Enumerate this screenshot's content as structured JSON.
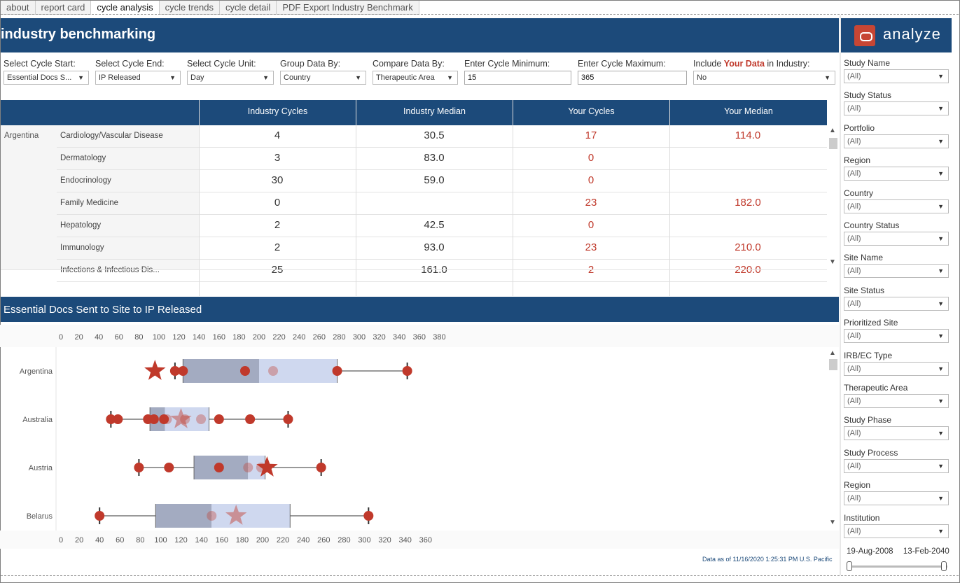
{
  "tabs": [
    "about",
    "report card",
    "cycle analysis",
    "cycle trends",
    "cycle detail",
    "PDF Export Industry Benchmark"
  ],
  "active_tab": 2,
  "header": {
    "title": "industry benchmarking",
    "logo_text": "analyze"
  },
  "filters": {
    "cycle_start": {
      "label": "Select Cycle Start:",
      "value": "Essential Docs S..."
    },
    "cycle_end": {
      "label": "Select Cycle End:",
      "value": "IP Released"
    },
    "cycle_unit": {
      "label": "Select Cycle Unit:",
      "value": "Day"
    },
    "group_by": {
      "label": "Group Data By:",
      "value": "Country"
    },
    "compare_by": {
      "label": "Compare Data By:",
      "value": "Therapeutic Area"
    },
    "cycle_min": {
      "label": "Enter Cycle Minimum:",
      "value": "15"
    },
    "cycle_max": {
      "label": "Enter Cycle Maximum:",
      "value": "365"
    },
    "include": {
      "label_pre": "Include ",
      "label_hl": "Your Data",
      "label_post": " in Industry:",
      "value": "No"
    }
  },
  "table": {
    "headers": [
      "Industry Cycles",
      "Industry Median",
      "Your Cycles",
      "Your Median"
    ],
    "country": "Argentina",
    "rows": [
      {
        "category": "Cardiology/Vascular Disease",
        "industry_cycles": "4",
        "industry_median": "30.5",
        "your_cycles": "17",
        "your_median": "114.0"
      },
      {
        "category": "Dermatology",
        "industry_cycles": "3",
        "industry_median": "83.0",
        "your_cycles": "0",
        "your_median": ""
      },
      {
        "category": "Endocrinology",
        "industry_cycles": "30",
        "industry_median": "59.0",
        "your_cycles": "0",
        "your_median": ""
      },
      {
        "category": "Family Medicine",
        "industry_cycles": "0",
        "industry_median": "",
        "your_cycles": "23",
        "your_median": "182.0"
      },
      {
        "category": "Hepatology",
        "industry_cycles": "2",
        "industry_median": "42.5",
        "your_cycles": "0",
        "your_median": ""
      },
      {
        "category": "Immunology",
        "industry_cycles": "2",
        "industry_median": "93.0",
        "your_cycles": "23",
        "your_median": "210.0"
      },
      {
        "category": "Infections & Infectious Dis...",
        "industry_cycles": "25",
        "industry_median": "161.0",
        "your_cycles": "2",
        "your_median": "220.0"
      }
    ]
  },
  "chart": {
    "title": "Essential Docs Sent to Site to IP Released",
    "note": "Data as of 11/16/2020 1:25:31 PM U.S. Pacific"
  },
  "chart_data": {
    "type": "boxplot",
    "colors": {
      "box_low": "#a3abc1",
      "box_high": "#cfd8ef",
      "dot": "#c0392b",
      "whisker": "#333333"
    },
    "series": [
      {
        "name": "Argentina",
        "axis_top": [
          0,
          20,
          40,
          60,
          80,
          100,
          120,
          140,
          160,
          180,
          200,
          220,
          240,
          260,
          280,
          300,
          320,
          340,
          360,
          380
        ],
        "axis_max": 380,
        "whisker_low": 116,
        "whisker_high": 348,
        "q1": 124,
        "median": 200,
        "q3": 278,
        "points": [
          116,
          124,
          186,
          278,
          348
        ],
        "faded_points": [
          214
        ],
        "star": 96,
        "star_faded": false
      },
      {
        "name": "Australia",
        "axis_top": [
          0,
          20,
          40,
          60,
          80,
          100,
          120,
          140,
          160,
          180,
          200,
          220,
          240,
          260,
          280,
          300,
          320,
          340,
          360,
          380
        ],
        "axis_max": 380,
        "whisker_low": 52,
        "whisker_high": 229,
        "q1": 91,
        "median": 106,
        "q3": 150,
        "points": [
          52,
          59,
          89,
          95,
          105,
          160,
          191,
          229
        ],
        "faded_points": [
          108,
          126,
          142
        ],
        "star": 122,
        "star_faded": true
      },
      {
        "name": "Austria",
        "axis_top": [
          0,
          20,
          40,
          60,
          80,
          100,
          120,
          140,
          160,
          180,
          200,
          220,
          240,
          260,
          280,
          300,
          320,
          340,
          360,
          380
        ],
        "axis_max": 380,
        "whisker_low": 80,
        "whisker_high": 262,
        "q1": 135,
        "median": 189,
        "q3": 206,
        "points": [
          80,
          110,
          160,
          262
        ],
        "faded_points": [
          189,
          202
        ],
        "star": 208,
        "star_faded": false
      },
      {
        "name": "Belarus",
        "axis_bottom": [
          0,
          20,
          40,
          60,
          80,
          100,
          120,
          140,
          160,
          180,
          200,
          220,
          240,
          260,
          280,
          300,
          320,
          340,
          360
        ],
        "axis_max": 370,
        "whisker_low": 40,
        "whisker_high": 304,
        "q1": 95,
        "median": 150,
        "q3": 227,
        "points": [
          40,
          304
        ],
        "faded_points": [
          150
        ],
        "star": 174,
        "star_faded": true
      }
    ]
  },
  "right_filters": [
    {
      "label": "Study Name",
      "value": "(All)"
    },
    {
      "label": "Study Status",
      "value": "(All)"
    },
    {
      "label": "Portfolio",
      "value": "(All)"
    },
    {
      "label": "Region",
      "value": "(All)"
    },
    {
      "label": "Country",
      "value": "(All)"
    },
    {
      "label": "Country Status",
      "value": "(All)"
    },
    {
      "label": "Site Name",
      "value": "(All)"
    },
    {
      "label": "Site Status",
      "value": "(All)"
    },
    {
      "label": "Prioritized Site",
      "value": "(All)"
    },
    {
      "label": "IRB/EC Type",
      "value": "(All)"
    },
    {
      "label": "Therapeutic Area",
      "value": "(All)"
    },
    {
      "label": "Study Phase",
      "value": "(All)"
    },
    {
      "label": "Study Process",
      "value": "(All)"
    },
    {
      "label": "Region",
      "value": "(All)"
    },
    {
      "label": "Institution",
      "value": "(All)"
    }
  ],
  "date_range": {
    "start": "19-Aug-2008",
    "end": "13-Feb-2040"
  }
}
